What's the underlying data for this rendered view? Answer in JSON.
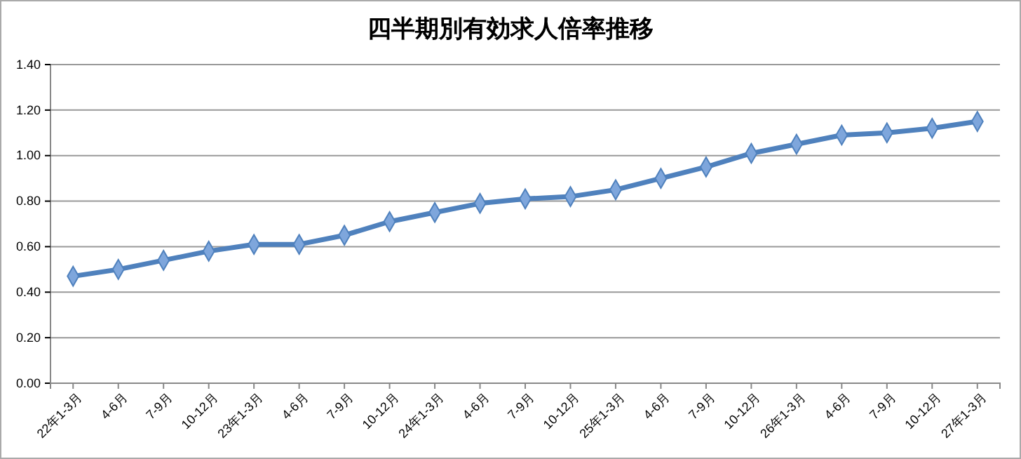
{
  "chart_data": {
    "type": "line",
    "title": "四半期別有効求人倍率推移",
    "categories": [
      "22年1-3月",
      "4-6月",
      "7-9月",
      "10-12月",
      "23年1-3月",
      "4-6月",
      "7-9月",
      "10-12月",
      "24年1-3月",
      "4-6月",
      "7-9月",
      "10-12月",
      "25年1-3月",
      "4-6月",
      "7-9月",
      "10-12月",
      "26年1-3月",
      "4-6月",
      "7-9月",
      "10-12月",
      "27年1-3月"
    ],
    "series": [
      {
        "color": "#4f81bd",
        "values": [
          0.47,
          0.5,
          0.54,
          0.58,
          0.61,
          0.61,
          0.65,
          0.71,
          0.75,
          0.79,
          0.81,
          0.82,
          0.85,
          0.9,
          0.95,
          1.01,
          1.05,
          1.09,
          1.1,
          1.12,
          1.15
        ]
      }
    ],
    "ylim": [
      0,
      1.4
    ],
    "yticks": [
      {
        "value": 0,
        "label": "0.00"
      },
      {
        "value": 0.2,
        "label": "0.20"
      },
      {
        "value": 0.4,
        "label": "0.40"
      },
      {
        "value": 0.6,
        "label": "0.60"
      },
      {
        "value": 0.8,
        "label": "0.80"
      },
      {
        "value": 1,
        "label": "1.00"
      },
      {
        "value": 1.2,
        "label": "1.20"
      },
      {
        "value": 1.4,
        "label": "1.40"
      }
    ],
    "grid": "y",
    "marker": "diamond",
    "line_style": "solid"
  }
}
